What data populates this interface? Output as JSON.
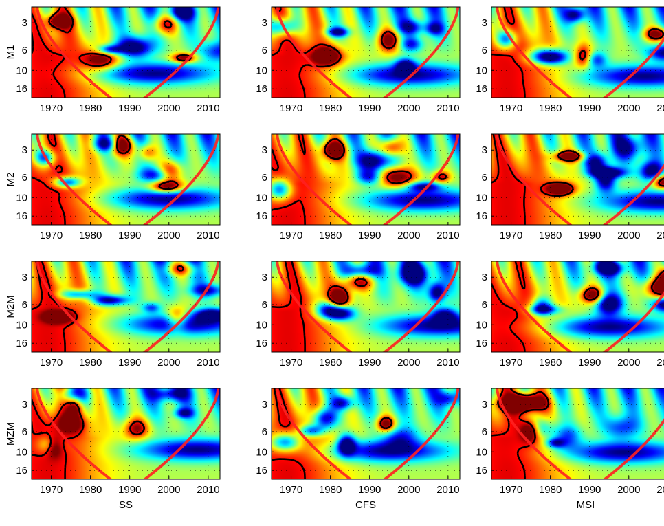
{
  "chart_data": {
    "type": "heatmap",
    "chart_kind": "wavelet-coherence-grid",
    "scale": "log",
    "rows": [
      "M1",
      "M2",
      "M2M",
      "MZM"
    ],
    "columns": [
      "SS",
      "CFS",
      "MSI"
    ],
    "xlim": [
      1965,
      2013
    ],
    "ylim": [
      2,
      20
    ],
    "x_ticks": [
      1970,
      1980,
      1990,
      2000,
      2010
    ],
    "y_ticks": [
      3,
      6,
      10,
      16
    ],
    "x_tick_labels": [
      "1970",
      "1980",
      "1990",
      "2000",
      "2010"
    ],
    "y_tick_labels": [
      "3",
      "6",
      "10",
      "16"
    ],
    "colors": {
      "low": "#00008f",
      "mid": "#80ff80",
      "high": "#800000",
      "contour": "#000000",
      "cone": "#ff2020"
    }
  }
}
